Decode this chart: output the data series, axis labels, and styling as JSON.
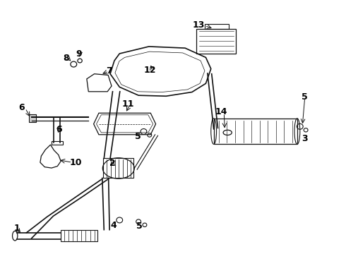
{
  "bg_color": "#ffffff",
  "lc": "#111111",
  "label_color": "#000000",
  "figsize": [
    4.9,
    3.6
  ],
  "dpi": 100,
  "lw_main": 1.2,
  "lw_thin": 0.8,
  "lw_thick": 1.6
}
